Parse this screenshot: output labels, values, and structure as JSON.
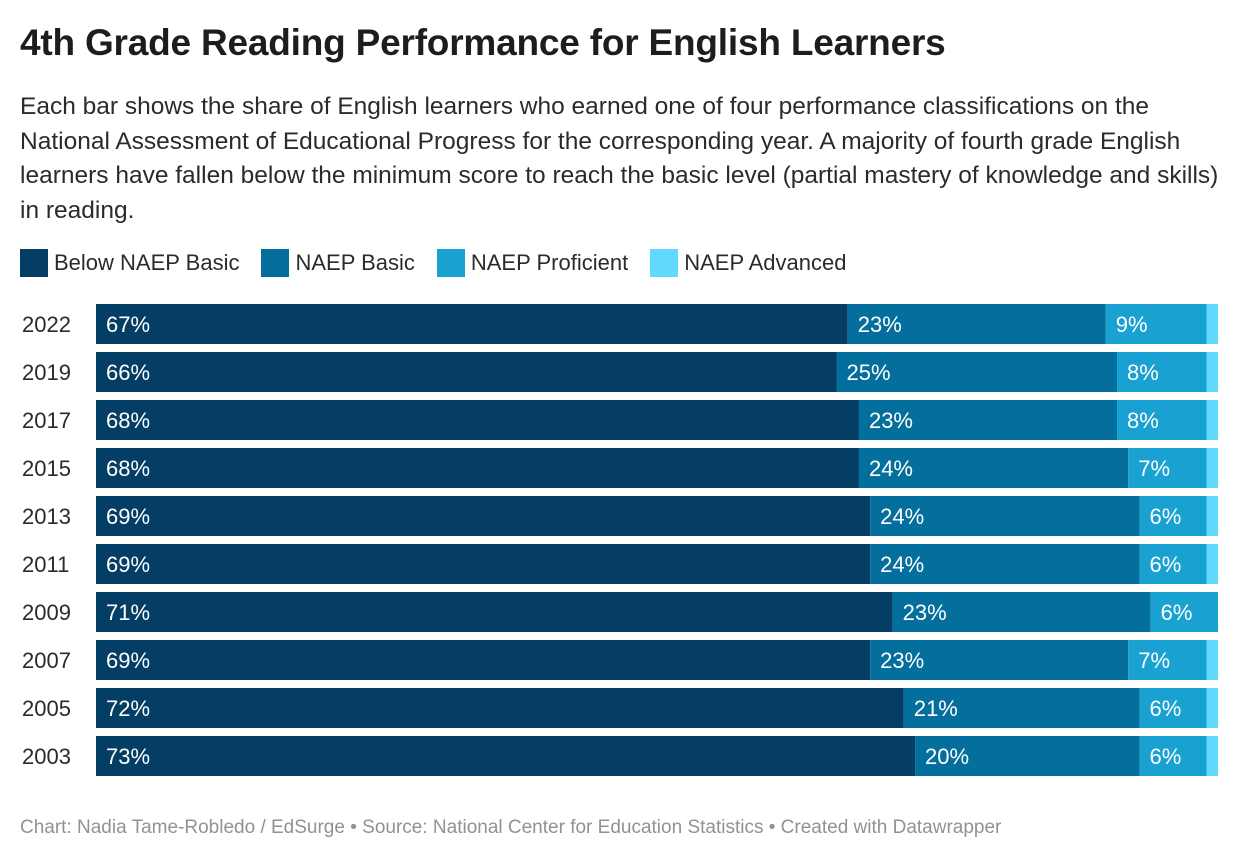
{
  "title": "4th Grade Reading Performance for English Learners",
  "subtitle": "Each bar shows the share of English learners who earned one of four performance classifications on the National Assessment of Educational Progress for the corresponding year. A majority of fourth grade English learners have fallen below the minimum score to reach the basic level (partial mastery of knowledge and skills) in reading.",
  "footer": "Chart: Nadia Tame-Robledo / EdSurge • Source: National Center for Education Statistics • Created with Datawrapper",
  "chart_data": {
    "type": "bar",
    "orientation": "horizontal",
    "stacked": true,
    "categories": [
      "2022",
      "2019",
      "2017",
      "2015",
      "2013",
      "2011",
      "2009",
      "2007",
      "2005",
      "2003"
    ],
    "series": [
      {
        "name": "Below NAEP Basic",
        "color": "#053e65",
        "values": [
          67,
          66,
          68,
          68,
          69,
          69,
          71,
          69,
          72,
          73
        ],
        "labels": [
          "67%",
          "66%",
          "68%",
          "68%",
          "69%",
          "69%",
          "71%",
          "69%",
          "72%",
          "73%"
        ]
      },
      {
        "name": "NAEP Basic",
        "color": "#046f9c",
        "values": [
          23,
          25,
          23,
          24,
          24,
          24,
          23,
          23,
          21,
          20
        ],
        "labels": [
          "23%",
          "25%",
          "23%",
          "24%",
          "24%",
          "24%",
          "23%",
          "23%",
          "21%",
          "20%"
        ]
      },
      {
        "name": "NAEP Proficient",
        "color": "#19a2d1",
        "values": [
          9,
          8,
          8,
          7,
          6,
          6,
          6,
          7,
          6,
          6
        ],
        "labels": [
          "9%",
          "8%",
          "8%",
          "7%",
          "6%",
          "6%",
          "6%",
          "7%",
          "6%",
          "6%"
        ]
      },
      {
        "name": "NAEP Advanced",
        "color": "#62d9ff",
        "values": [
          1,
          1,
          1,
          1,
          1,
          1,
          0,
          1,
          1,
          1
        ],
        "labels": [
          "",
          "",
          "",
          "",
          "",
          "",
          "",
          "",
          "",
          ""
        ]
      }
    ],
    "xlim": [
      0,
      100
    ],
    "legend_position": "top-left"
  }
}
